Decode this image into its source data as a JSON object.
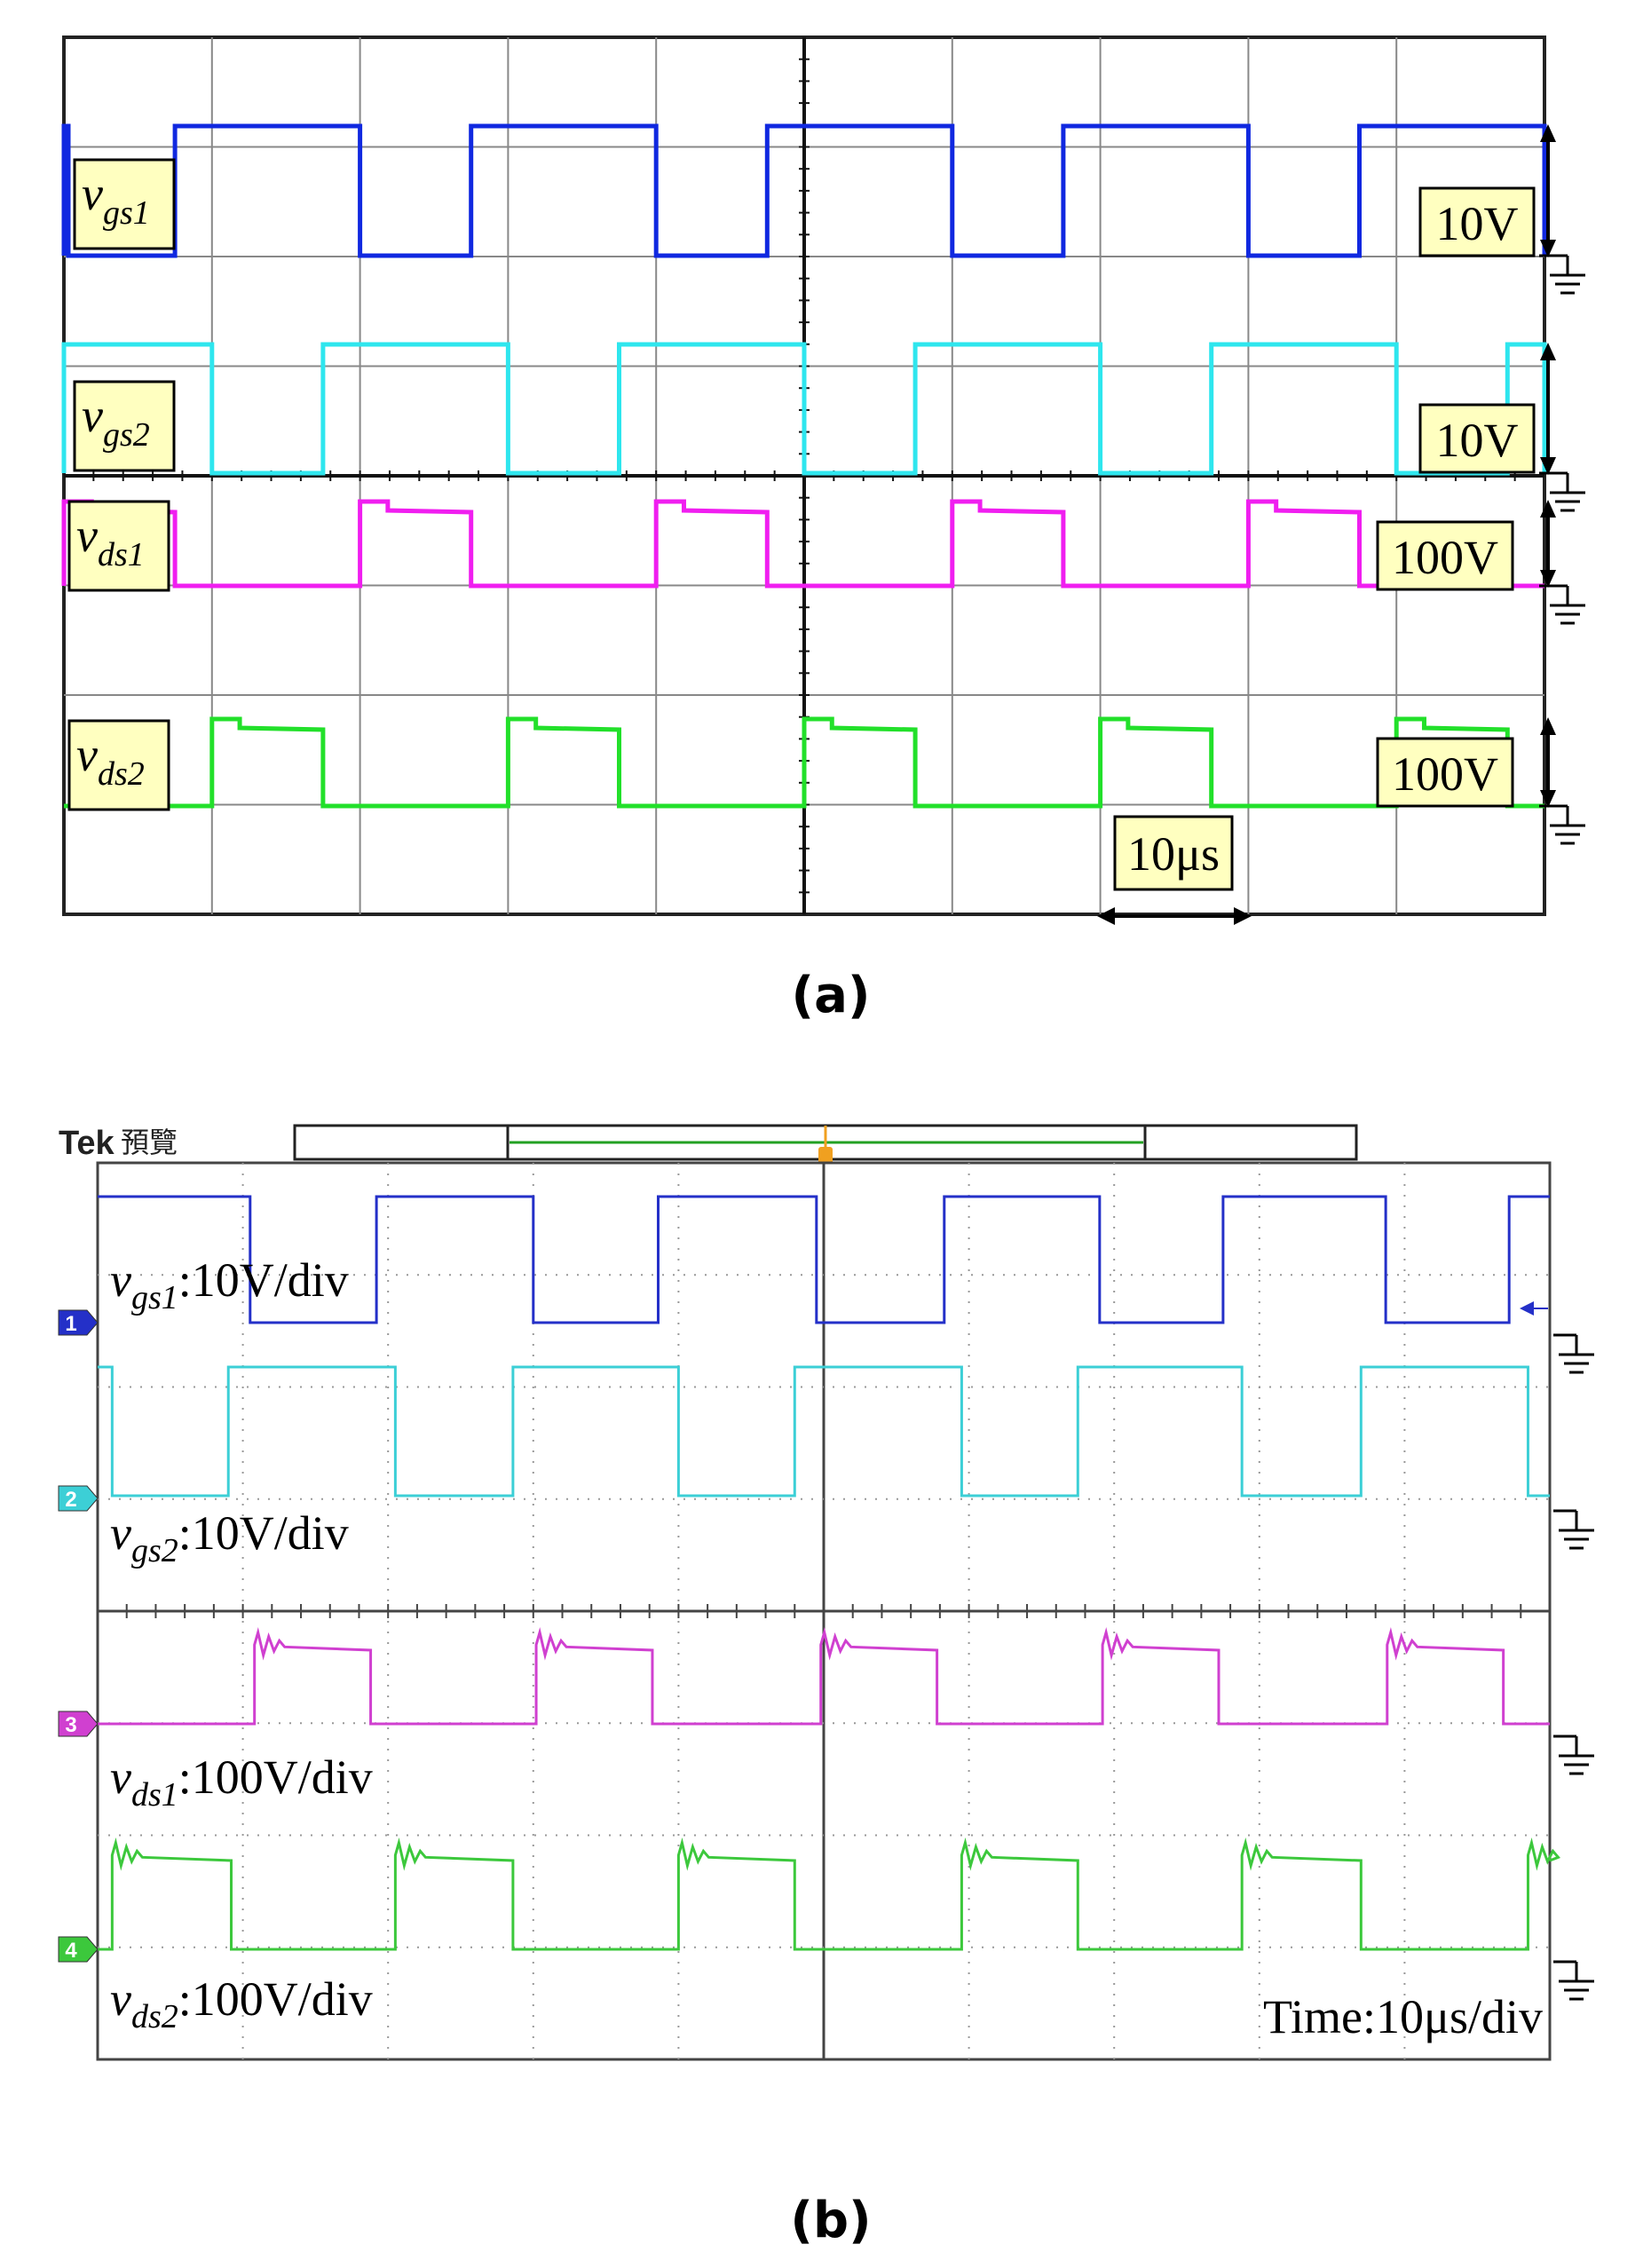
{
  "panels": {
    "a": {
      "caption": "(a)"
    },
    "b": {
      "caption": "(b)"
    }
  },
  "chart_data": [
    {
      "type": "line",
      "title": "",
      "panel": "(a)",
      "time_scale": "10μs",
      "x_unit": "μs",
      "xlim": [
        0,
        100
      ],
      "series": [
        {
          "name": "vgs1",
          "label_main": "v",
          "label_sub": "gs1",
          "scale": "10V",
          "color": "#1028e0",
          "high_times": [
            [
              0,
              0.3
            ],
            [
              7.5,
              20
            ],
            [
              27.5,
              40
            ],
            [
              47.5,
              60
            ],
            [
              67.5,
              80
            ],
            [
              87.5,
              100
            ]
          ]
        },
        {
          "name": "vgs2",
          "label_main": "v",
          "label_sub": "gs2",
          "scale": "10V",
          "color": "#2ee6ee",
          "high_times": [
            [
              0,
              10
            ],
            [
              17.5,
              30
            ],
            [
              37.5,
              50
            ],
            [
              57.5,
              70
            ],
            [
              77.5,
              90
            ],
            [
              97.5,
              100
            ]
          ]
        },
        {
          "name": "vds1",
          "label_main": "v",
          "label_sub": "ds1",
          "scale": "100V",
          "color": "#f01ef0",
          "high_times": [
            [
              0,
              7.5
            ],
            [
              20,
              27.5
            ],
            [
              40,
              47.5
            ],
            [
              60,
              67.5
            ],
            [
              80,
              87.5
            ]
          ]
        },
        {
          "name": "vds2",
          "label_main": "v",
          "label_sub": "ds2",
          "scale": "100V",
          "color": "#22e02a",
          "high_times": [
            [
              10,
              17.5
            ],
            [
              30,
              37.5
            ],
            [
              50,
              57.5
            ],
            [
              70,
              77.5
            ],
            [
              90,
              97.5
            ]
          ]
        }
      ]
    },
    {
      "type": "line",
      "title": "",
      "panel": "(b)",
      "header": {
        "brand": "Tek",
        "mode": "預覽"
      },
      "time_label": "Time:10μs/div",
      "x_unit": "μs",
      "xlim": [
        0,
        100
      ],
      "series": [
        {
          "name": "vgs1",
          "channel": "1",
          "label_main": "v",
          "label_sub": "gs1",
          "scale": ":10V/div",
          "color": "#2430c8",
          "high_times": [
            [
              0,
              10.5
            ],
            [
              19.2,
              30
            ],
            [
              38.6,
              49.5
            ],
            [
              58.3,
              69
            ],
            [
              77.5,
              88.7
            ],
            [
              97.2,
              100
            ]
          ]
        },
        {
          "name": "vgs2",
          "channel": "2",
          "label_main": "v",
          "label_sub": "gs2",
          "scale": ":10V/div",
          "color": "#3ccfd6",
          "high_times": [
            [
              0,
              1
            ],
            [
              9,
              20.5
            ],
            [
              28.6,
              40
            ],
            [
              48,
              59.5
            ],
            [
              67.5,
              78.8
            ],
            [
              87,
              98.5
            ]
          ]
        },
        {
          "name": "vds1",
          "channel": "3",
          "label_main": "v",
          "label_sub": "ds1",
          "scale": ":100V/div",
          "color": "#d040d0",
          "high_times": [
            [
              10.8,
              18.8
            ],
            [
              30.2,
              38.2
            ],
            [
              49.8,
              57.8
            ],
            [
              69.2,
              77.2
            ],
            [
              88.8,
              96.8
            ]
          ]
        },
        {
          "name": "vds2",
          "channel": "4",
          "label_main": "v",
          "label_sub": "ds2",
          "scale": ":100V/div",
          "color": "#3cc83c",
          "high_times": [
            [
              1,
              9.2
            ],
            [
              20.5,
              28.6
            ],
            [
              40,
              48
            ],
            [
              59.5,
              67.5
            ],
            [
              78.8,
              87
            ],
            [
              98.5,
              100
            ]
          ]
        }
      ]
    }
  ]
}
